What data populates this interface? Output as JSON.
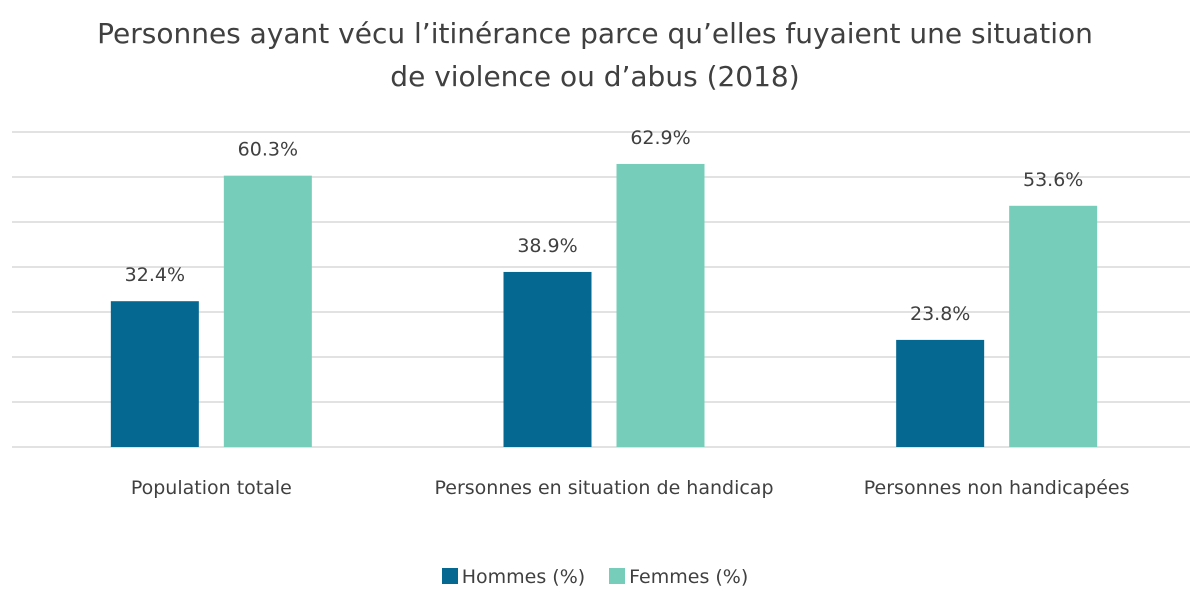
{
  "chart_data": {
    "type": "bar",
    "title": "Personnes ayant vécu l’itinérance parce qu’elles fuyaient une situation de violence ou d’abus (2018)",
    "categories": [
      "Population totale",
      "Personnes en situation de handicap",
      "Personnes non handicapées"
    ],
    "series": [
      {
        "name": "Hommes (%)",
        "color": "#046890",
        "values": [
          32.4,
          38.9,
          23.8
        ],
        "value_labels": [
          "32.4%",
          "38.9%",
          "23.8%"
        ]
      },
      {
        "name": "Femmes (%)",
        "color": "#76cdb9",
        "values": [
          60.3,
          62.9,
          53.6
        ],
        "value_labels": [
          "60.3%",
          "62.9%",
          "53.6%"
        ]
      }
    ],
    "ylim": [
      0,
      70
    ],
    "yticks": [
      0,
      10,
      20,
      30,
      40,
      50,
      60,
      70
    ],
    "grid": true,
    "legend": "bottom"
  }
}
